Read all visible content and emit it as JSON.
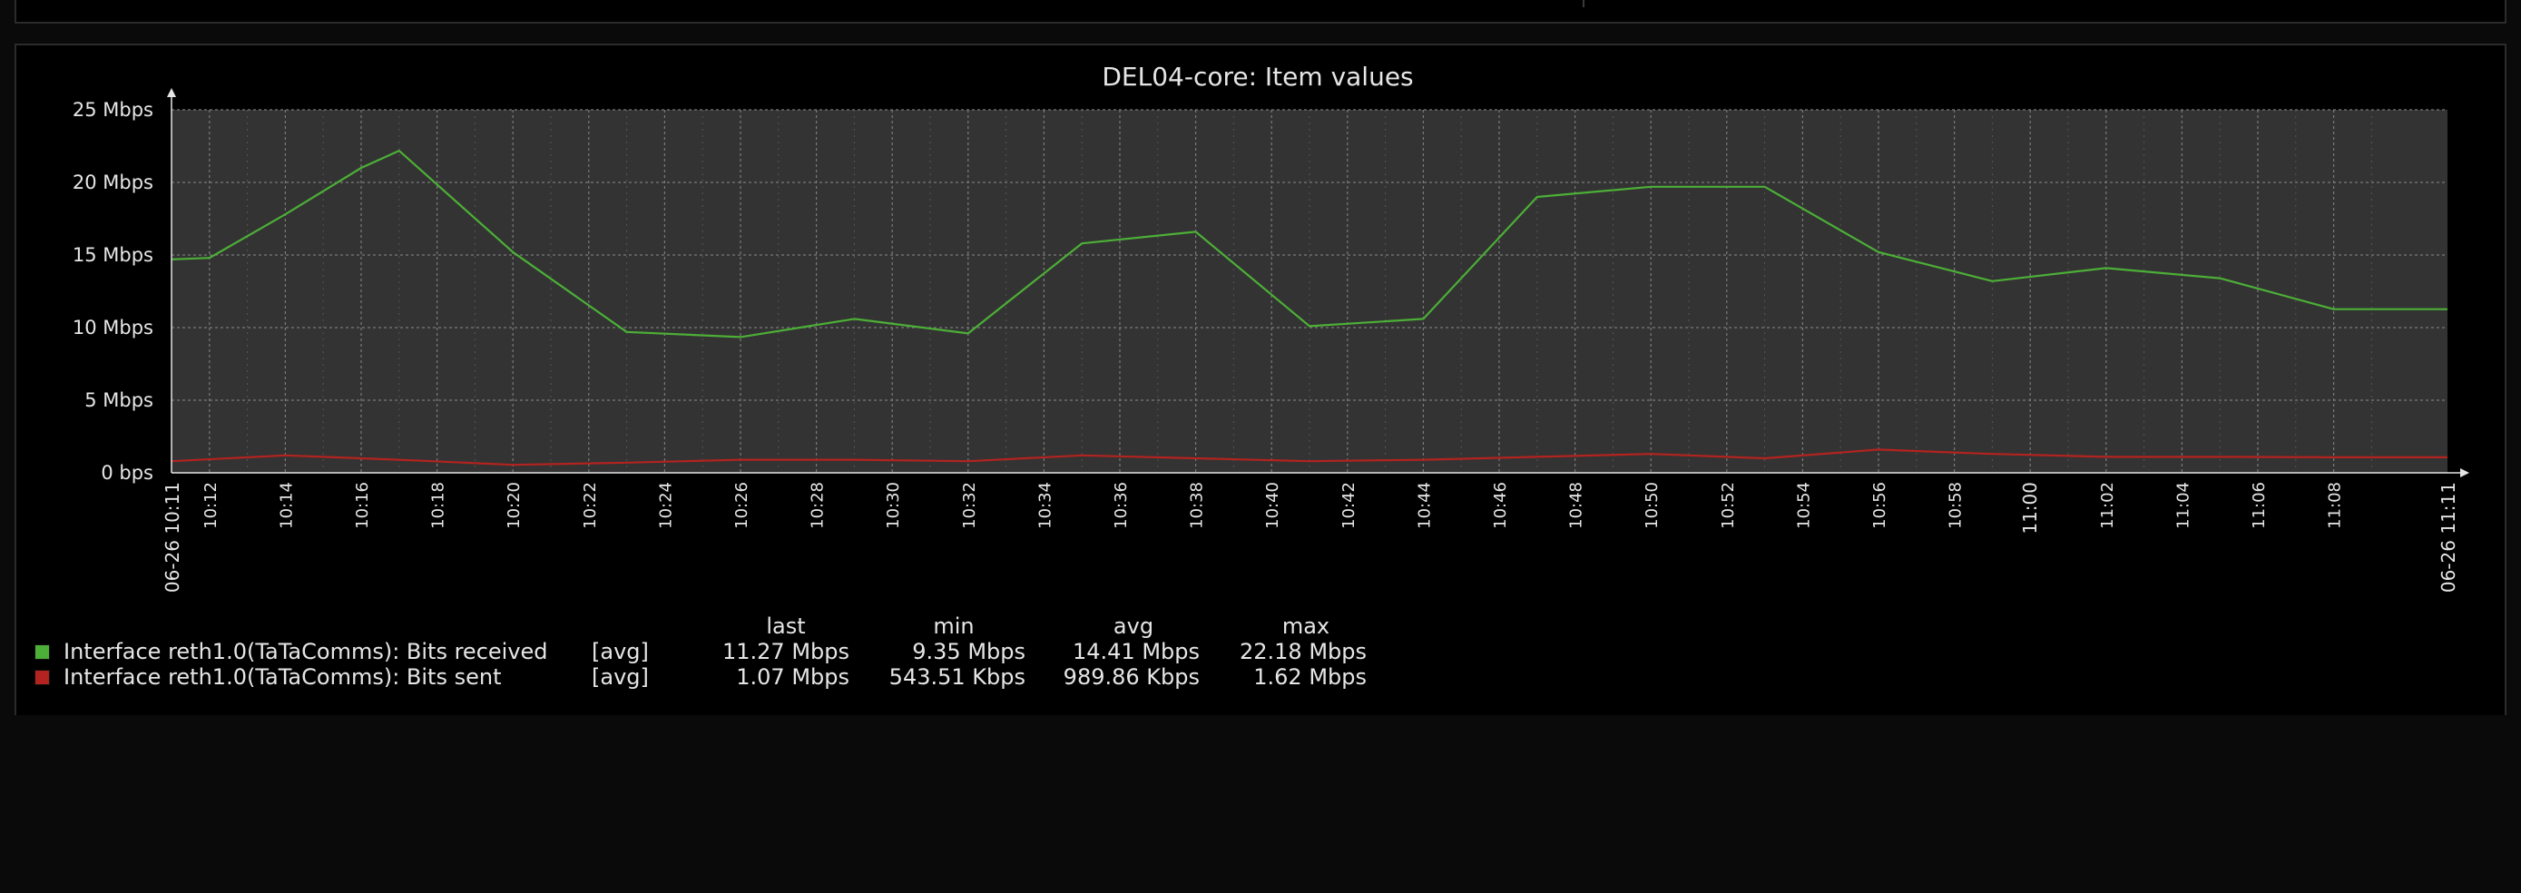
{
  "chart_data": {
    "type": "line",
    "title": "DEL04-core: Item values",
    "y_axis": {
      "unit": "Mbps",
      "ylim": [
        0,
        25
      ],
      "ticks": [
        {
          "value": 0,
          "label": "0 bps"
        },
        {
          "value": 5,
          "label": "5 Mbps"
        },
        {
          "value": 10,
          "label": "10 Mbps"
        },
        {
          "value": 15,
          "label": "15 Mbps"
        },
        {
          "value": 20,
          "label": "20 Mbps"
        },
        {
          "value": 25,
          "label": "25 Mbps"
        }
      ]
    },
    "x_axis": {
      "xlim": [
        "10:11",
        "11:11"
      ],
      "start_label": "06-26 10:11",
      "end_label": "06-26 11:11",
      "tick_labels": [
        "10:12",
        "10:14",
        "10:16",
        "10:18",
        "10:20",
        "10:22",
        "10:24",
        "10:26",
        "10:28",
        "10:30",
        "10:32",
        "10:34",
        "10:36",
        "10:38",
        "10:40",
        "10:42",
        "10:44",
        "10:46",
        "10:48",
        "10:50",
        "10:52",
        "10:54",
        "10:56",
        "10:58",
        "11:00",
        "11:02",
        "11:04",
        "11:06",
        "11:08"
      ],
      "bold_label": "11:00"
    },
    "grid": true,
    "series": [
      {
        "name": "Interface reth1.0(TaTaComms): Bits received",
        "color": "#4caf37",
        "points": [
          {
            "t": "10:11",
            "v": 14.7
          },
          {
            "t": "10:12",
            "v": 14.8
          },
          {
            "t": "10:14",
            "v": 17.8
          },
          {
            "t": "10:16",
            "v": 21.0
          },
          {
            "t": "10:17",
            "v": 22.18
          },
          {
            "t": "10:20",
            "v": 15.2
          },
          {
            "t": "10:23",
            "v": 9.7
          },
          {
            "t": "10:26",
            "v": 9.35
          },
          {
            "t": "10:29",
            "v": 10.6
          },
          {
            "t": "10:32",
            "v": 9.6
          },
          {
            "t": "10:35",
            "v": 15.8
          },
          {
            "t": "10:38",
            "v": 16.6
          },
          {
            "t": "10:41",
            "v": 10.1
          },
          {
            "t": "10:44",
            "v": 10.6
          },
          {
            "t": "10:47",
            "v": 19.0
          },
          {
            "t": "10:50",
            "v": 19.7
          },
          {
            "t": "10:53",
            "v": 19.7
          },
          {
            "t": "10:56",
            "v": 15.2
          },
          {
            "t": "10:59",
            "v": 13.2
          },
          {
            "t": "11:02",
            "v": 14.1
          },
          {
            "t": "11:05",
            "v": 13.4
          },
          {
            "t": "11:08",
            "v": 11.27
          },
          {
            "t": "11:11",
            "v": 11.27
          }
        ]
      },
      {
        "name": "Interface reth1.0(TaTaComms): Bits sent",
        "color": "#b3231f",
        "points": [
          {
            "t": "10:11",
            "v": 0.8
          },
          {
            "t": "10:14",
            "v": 1.2
          },
          {
            "t": "10:17",
            "v": 0.9
          },
          {
            "t": "10:20",
            "v": 0.55
          },
          {
            "t": "10:23",
            "v": 0.7
          },
          {
            "t": "10:26",
            "v": 0.9
          },
          {
            "t": "10:29",
            "v": 0.9
          },
          {
            "t": "10:32",
            "v": 0.8
          },
          {
            "t": "10:35",
            "v": 1.2
          },
          {
            "t": "10:38",
            "v": 1.0
          },
          {
            "t": "10:41",
            "v": 0.8
          },
          {
            "t": "10:44",
            "v": 0.9
          },
          {
            "t": "10:47",
            "v": 1.1
          },
          {
            "t": "10:50",
            "v": 1.3
          },
          {
            "t": "10:53",
            "v": 1.0
          },
          {
            "t": "10:56",
            "v": 1.6
          },
          {
            "t": "10:59",
            "v": 1.3
          },
          {
            "t": "11:02",
            "v": 1.1
          },
          {
            "t": "11:05",
            "v": 1.1
          },
          {
            "t": "11:08",
            "v": 1.07
          },
          {
            "t": "11:11",
            "v": 1.07
          }
        ]
      }
    ]
  },
  "legend": {
    "headers": {
      "last": "last",
      "min": "min",
      "avg": "avg",
      "max": "max"
    },
    "rows": [
      {
        "color": "#4caf37",
        "name": "Interface reth1.0(TaTaComms): Bits received",
        "func": "[avg]",
        "last": "11.27 Mbps",
        "min": "9.35 Mbps",
        "avg": "14.41 Mbps",
        "max": "22.18 Mbps"
      },
      {
        "color": "#b3231f",
        "name": "Interface reth1.0(TaTaComms): Bits sent",
        "func": "[avg]",
        "last": "1.07 Mbps",
        "min": "543.51 Kbps",
        "avg": "989.86 Kbps",
        "max": "1.62 Mbps"
      }
    ]
  }
}
